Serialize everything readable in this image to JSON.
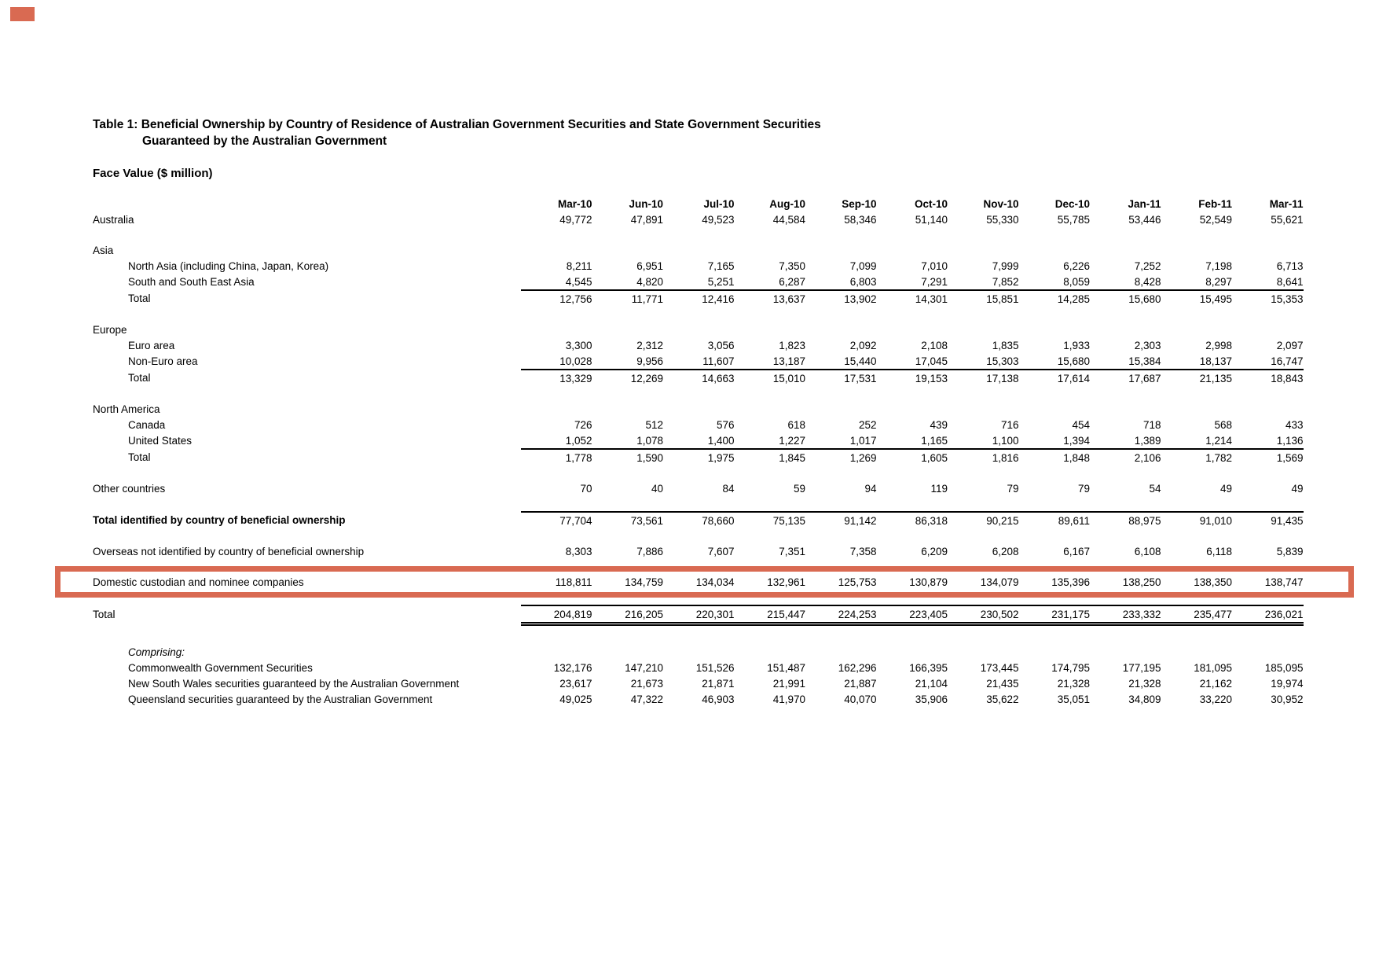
{
  "page": {
    "title_line1": "Table 1: Beneficial Ownership by Country of Residence of Australian Government Securities and State Government Securities",
    "title_line2": "Guaranteed by the Australian Government",
    "subtitle": "Face Value ($ million)"
  },
  "annotation": {
    "box_color": "#D96A52",
    "marker_color": "#D96A52",
    "highlighted_row_label": "Domestic custodian and nominee companies"
  },
  "table": {
    "columns": [
      "Mar-10",
      "Jun-10",
      "Jul-10",
      "Aug-10",
      "Sep-10",
      "Oct-10",
      "Nov-10",
      "Dec-10",
      "Jan-11",
      "Feb-11",
      "Mar-11"
    ],
    "rows": [
      {
        "label": "Australia",
        "indent": false,
        "values": [
          "49,772",
          "47,891",
          "49,523",
          "44,584",
          "58,346",
          "51,140",
          "55,330",
          "55,785",
          "53,446",
          "52,549",
          "55,621"
        ]
      },
      {
        "label": "Asia",
        "indent": false,
        "spacer_before": true,
        "values": null
      },
      {
        "label": "North Asia (including China, Japan, Korea)",
        "indent": true,
        "values": [
          "8,211",
          "6,951",
          "7,165",
          "7,350",
          "7,099",
          "7,010",
          "7,999",
          "6,226",
          "7,252",
          "7,198",
          "6,713"
        ]
      },
      {
        "label": "South and South East Asia",
        "indent": true,
        "underline": true,
        "values": [
          "4,545",
          "4,820",
          "5,251",
          "6,287",
          "6,803",
          "7,291",
          "7,852",
          "8,059",
          "8,428",
          "8,297",
          "8,641"
        ]
      },
      {
        "label": "Total",
        "indent": true,
        "values": [
          "12,756",
          "11,771",
          "12,416",
          "13,637",
          "13,902",
          "14,301",
          "15,851",
          "14,285",
          "15,680",
          "15,495",
          "15,353"
        ]
      },
      {
        "label": "Europe",
        "indent": false,
        "spacer_before": true,
        "values": null
      },
      {
        "label": "Euro area",
        "indent": true,
        "values": [
          "3,300",
          "2,312",
          "3,056",
          "1,823",
          "2,092",
          "2,108",
          "1,835",
          "1,933",
          "2,303",
          "2,998",
          "2,097"
        ]
      },
      {
        "label": "Non-Euro area",
        "indent": true,
        "underline": true,
        "values": [
          "10,028",
          "9,956",
          "11,607",
          "13,187",
          "15,440",
          "17,045",
          "15,303",
          "15,680",
          "15,384",
          "18,137",
          "16,747"
        ]
      },
      {
        "label": "Total",
        "indent": true,
        "values": [
          "13,329",
          "12,269",
          "14,663",
          "15,010",
          "17,531",
          "19,153",
          "17,138",
          "17,614",
          "17,687",
          "21,135",
          "18,843"
        ]
      },
      {
        "label": "North America",
        "indent": false,
        "spacer_before": true,
        "values": null
      },
      {
        "label": "Canada",
        "indent": true,
        "values": [
          "726",
          "512",
          "576",
          "618",
          "252",
          "439",
          "716",
          "454",
          "718",
          "568",
          "433"
        ]
      },
      {
        "label": "United States",
        "indent": true,
        "underline": true,
        "values": [
          "1,052",
          "1,078",
          "1,400",
          "1,227",
          "1,017",
          "1,165",
          "1,100",
          "1,394",
          "1,389",
          "1,214",
          "1,136"
        ]
      },
      {
        "label": "Total",
        "indent": true,
        "values": [
          "1,778",
          "1,590",
          "1,975",
          "1,845",
          "1,269",
          "1,605",
          "1,816",
          "1,848",
          "2,106",
          "1,782",
          "1,569"
        ]
      },
      {
        "label": "Other countries",
        "indent": false,
        "spacer_before": true,
        "values": [
          "70",
          "40",
          "84",
          "59",
          "94",
          "119",
          "79",
          "79",
          "54",
          "49",
          "49"
        ]
      },
      {
        "label": "Total identified by country of beneficial ownership",
        "indent": false,
        "bold": true,
        "topline": true,
        "spacer_before": true,
        "values": [
          "77,704",
          "73,561",
          "78,660",
          "75,135",
          "91,142",
          "86,318",
          "90,215",
          "89,611",
          "88,975",
          "91,010",
          "91,435"
        ]
      },
      {
        "label": "Overseas not identified by country of beneficial ownership",
        "indent": false,
        "spacer_before": true,
        "values": [
          "8,303",
          "7,886",
          "7,607",
          "7,351",
          "7,358",
          "6,209",
          "6,208",
          "6,167",
          "6,108",
          "6,118",
          "5,839"
        ]
      },
      {
        "label": "Domestic custodian and nominee companies",
        "indent": false,
        "highlight": true,
        "spacer_before": true,
        "values": [
          "118,811",
          "134,759",
          "134,034",
          "132,961",
          "125,753",
          "130,879",
          "134,079",
          "135,396",
          "138,250",
          "138,350",
          "138,747"
        ]
      },
      {
        "label": "Total",
        "indent": false,
        "topline": true,
        "doubleline": true,
        "spacer_before": true,
        "values": [
          "204,819",
          "216,205",
          "220,301",
          "215,447",
          "224,253",
          "223,405",
          "230,502",
          "231,175",
          "233,332",
          "235,477",
          "236,021"
        ]
      },
      {
        "label": "Comprising:",
        "indent": true,
        "italic": true,
        "spacer_before": true,
        "extra_space": true,
        "values": null
      },
      {
        "label": "Commonwealth Government Securities",
        "indent": true,
        "values": [
          "132,176",
          "147,210",
          "151,526",
          "151,487",
          "162,296",
          "166,395",
          "173,445",
          "174,795",
          "177,195",
          "181,095",
          "185,095"
        ]
      },
      {
        "label": "New South Wales securities guaranteed by the Australian Government",
        "indent": true,
        "values": [
          "23,617",
          "21,673",
          "21,871",
          "21,991",
          "21,887",
          "21,104",
          "21,435",
          "21,328",
          "21,328",
          "21,162",
          "19,974"
        ]
      },
      {
        "label": "Queensland securities guaranteed by the Australian Government",
        "indent": true,
        "values": [
          "49,025",
          "47,322",
          "46,903",
          "41,970",
          "40,070",
          "35,906",
          "35,622",
          "35,051",
          "34,809",
          "33,220",
          "30,952"
        ]
      }
    ]
  }
}
